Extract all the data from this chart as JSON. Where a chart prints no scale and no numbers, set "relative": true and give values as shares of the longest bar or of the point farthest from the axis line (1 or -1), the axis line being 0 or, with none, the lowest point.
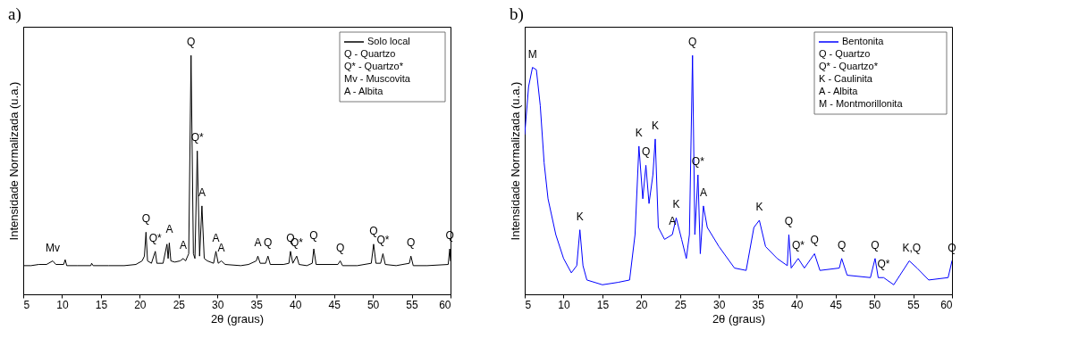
{
  "chart_data": [
    {
      "type": "line",
      "title": "a)",
      "xlabel": "2θ (graus)",
      "ylabel": "Intensidade Normalizada (u.a.)",
      "relative": true,
      "legend": "top right",
      "xlim": [
        5,
        60
      ],
      "xticks": [
        5,
        10,
        15,
        20,
        25,
        30,
        35,
        40,
        45,
        50,
        55,
        60
      ],
      "x": [
        5,
        6,
        7,
        8,
        8.8,
        9.2,
        10.2,
        10.4,
        10.6,
        12,
        13.7,
        13.8,
        14,
        16,
        18,
        19.5,
        20.3,
        20.6,
        20.8,
        21.0,
        21.5,
        22.0,
        22.2,
        23.0,
        23.5,
        23.65,
        23.8,
        24.0,
        24.5,
        25.2,
        25.6,
        25.9,
        26.3,
        26.6,
        26.9,
        27.1,
        27.4,
        27.7,
        28.0,
        28.3,
        28.7,
        29.5,
        29.8,
        30.1,
        30.5,
        31,
        33,
        34,
        35,
        35.2,
        35.5,
        36.2,
        36.5,
        36.8,
        38.5,
        39.2,
        39.4,
        39.7,
        40.2,
        40.5,
        41.5,
        42.2,
        42.4,
        42.7,
        45.5,
        45.8,
        46.1,
        48,
        49.8,
        50.1,
        50.4,
        51.0,
        51.3,
        51.6,
        53,
        54.7,
        54.9,
        55.2,
        57,
        59.7,
        59.9,
        60
      ],
      "series": [
        {
          "name": "Solo local",
          "color": "#000000",
          "values": [
            0.12,
            0.12,
            0.125,
            0.125,
            0.14,
            0.125,
            0.125,
            0.145,
            0.12,
            0.12,
            0.12,
            0.13,
            0.12,
            0.12,
            0.12,
            0.125,
            0.14,
            0.16,
            0.26,
            0.14,
            0.13,
            0.18,
            0.13,
            0.13,
            0.21,
            0.15,
            0.215,
            0.14,
            0.135,
            0.14,
            0.15,
            0.14,
            0.17,
            1.0,
            0.17,
            0.15,
            0.6,
            0.16,
            0.37,
            0.15,
            0.14,
            0.13,
            0.18,
            0.13,
            0.14,
            0.125,
            0.12,
            0.125,
            0.14,
            0.16,
            0.13,
            0.13,
            0.16,
            0.125,
            0.125,
            0.13,
            0.18,
            0.13,
            0.16,
            0.125,
            0.12,
            0.13,
            0.19,
            0.125,
            0.125,
            0.14,
            0.12,
            0.12,
            0.13,
            0.21,
            0.13,
            0.13,
            0.17,
            0.125,
            0.12,
            0.13,
            0.16,
            0.12,
            0.12,
            0.125,
            0.19,
            0.14
          ]
        }
      ],
      "annotations": [
        "Q - Quartzo",
        "Q* - Quartzo*",
        "Mv - Muscovita",
        "A - Albita",
        {
          "text": "Mv",
          "x": 8.8,
          "y": 0.14
        },
        {
          "text": "Q",
          "x": 20.8,
          "y": 0.26
        },
        {
          "text": "Q*",
          "x": 22.0,
          "y": 0.18
        },
        {
          "text": "A",
          "x": 23.8,
          "y": 0.215
        },
        {
          "text": "A",
          "x": 25.6,
          "y": 0.15
        },
        {
          "text": "Q",
          "x": 26.6,
          "y": 1.0
        },
        {
          "text": "Q*",
          "x": 27.4,
          "y": 0.6
        },
        {
          "text": "A",
          "x": 28.0,
          "y": 0.37
        },
        {
          "text": "A",
          "x": 29.8,
          "y": 0.18
        },
        {
          "text": "A",
          "x": 30.5,
          "y": 0.14
        },
        {
          "text": "A",
          "x": 35.2,
          "y": 0.16
        },
        {
          "text": "Q",
          "x": 36.5,
          "y": 0.16
        },
        {
          "text": "Q",
          "x": 39.4,
          "y": 0.18
        },
        {
          "text": "Q*",
          "x": 40.2,
          "y": 0.16
        },
        {
          "text": "Q",
          "x": 42.4,
          "y": 0.19
        },
        {
          "text": "Q",
          "x": 45.8,
          "y": 0.14
        },
        {
          "text": "Q",
          "x": 50.1,
          "y": 0.21
        },
        {
          "text": "Q*",
          "x": 51.3,
          "y": 0.17
        },
        {
          "text": "Q",
          "x": 54.9,
          "y": 0.16
        },
        {
          "text": "Q",
          "x": 59.9,
          "y": 0.19
        }
      ]
    },
    {
      "type": "line",
      "title": "b)",
      "xlabel": "2θ (graus)",
      "ylabel": "Intensidade Normalizada (u.a.)",
      "relative": true,
      "legend": "top right",
      "xlim": [
        5,
        60
      ],
      "xticks": [
        5,
        10,
        15,
        20,
        25,
        30,
        35,
        40,
        45,
        50,
        55,
        60
      ],
      "x": [
        5,
        5.5,
        6,
        6.5,
        7,
        7.5,
        8,
        9,
        10,
        11,
        11.7,
        12.1,
        12.5,
        13,
        15,
        17,
        18.5,
        19.2,
        19.7,
        20.2,
        20.6,
        21.0,
        21.5,
        21.8,
        22.2,
        23,
        24.0,
        24.5,
        25.2,
        25.8,
        26.2,
        26.6,
        26.9,
        27.3,
        27.6,
        28.0,
        28.5,
        30,
        32,
        33.5,
        34.5,
        35.2,
        36,
        37.5,
        38.8,
        39.0,
        39.3,
        40.2,
        41,
        42.3,
        43,
        45.5,
        45.8,
        46.5,
        49.5,
        50.1,
        50.5,
        51.2,
        52.5,
        54.5,
        55.5,
        57,
        59.5,
        60
      ],
      "series": [
        {
          "name": "Bentonita",
          "color": "#0000ff",
          "values": [
            0.67,
            0.87,
            0.95,
            0.94,
            0.79,
            0.55,
            0.4,
            0.25,
            0.15,
            0.09,
            0.12,
            0.27,
            0.12,
            0.06,
            0.04,
            0.05,
            0.06,
            0.25,
            0.62,
            0.4,
            0.54,
            0.38,
            0.5,
            0.65,
            0.28,
            0.23,
            0.25,
            0.32,
            0.23,
            0.15,
            0.25,
            1.0,
            0.25,
            0.5,
            0.17,
            0.37,
            0.28,
            0.2,
            0.11,
            0.1,
            0.28,
            0.31,
            0.2,
            0.15,
            0.12,
            0.25,
            0.11,
            0.15,
            0.11,
            0.17,
            0.1,
            0.11,
            0.15,
            0.08,
            0.07,
            0.15,
            0.07,
            0.07,
            0.04,
            0.14,
            0.11,
            0.06,
            0.07,
            0.14
          ]
        }
      ],
      "annotations": [
        "Q - Quartzo",
        "Q* - Quartzo*",
        "K - Caulinita",
        "A - Albita",
        "M - Montmorillonita",
        {
          "text": "M",
          "x": 6.0,
          "y": 0.95
        },
        {
          "text": "K",
          "x": 12.1,
          "y": 0.27
        },
        {
          "text": "K",
          "x": 19.7,
          "y": 0.62
        },
        {
          "text": "Q",
          "x": 20.6,
          "y": 0.54
        },
        {
          "text": "K",
          "x": 21.8,
          "y": 0.65
        },
        {
          "text": "A",
          "x": 24.0,
          "y": 0.25
        },
        {
          "text": "K",
          "x": 24.5,
          "y": 0.32
        },
        {
          "text": "Q",
          "x": 26.6,
          "y": 1.0
        },
        {
          "text": "Q*",
          "x": 27.3,
          "y": 0.5
        },
        {
          "text": "A",
          "x": 28.0,
          "y": 0.37
        },
        {
          "text": "K",
          "x": 35.2,
          "y": 0.31
        },
        {
          "text": "Q",
          "x": 39.0,
          "y": 0.25
        },
        {
          "text": "Q*",
          "x": 40.2,
          "y": 0.15
        },
        {
          "text": "Q",
          "x": 42.3,
          "y": 0.17
        },
        {
          "text": "Q",
          "x": 45.8,
          "y": 0.15
        },
        {
          "text": "Q",
          "x": 50.1,
          "y": 0.15
        },
        {
          "text": "Q*",
          "x": 51.2,
          "y": 0.07
        },
        {
          "text": "K,Q",
          "x": 54.8,
          "y": 0.14
        },
        {
          "text": "Q",
          "x": 60,
          "y": 0.14
        }
      ]
    }
  ]
}
